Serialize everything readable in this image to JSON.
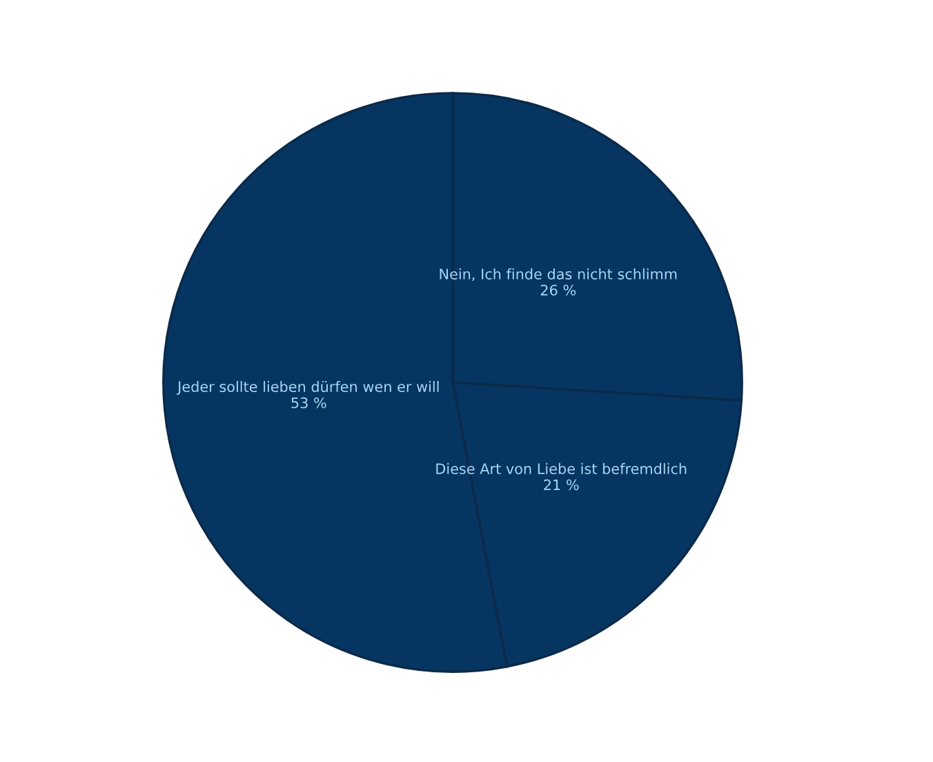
{
  "chart_data": {
    "type": "pie",
    "categories": [
      "Nein, Ich finde das nicht schlimm",
      "Diese Art von Liebe ist befremdlich",
      "Jeder sollte lieben dürfen wen er will"
    ],
    "values": [
      26,
      21,
      53
    ],
    "value_labels": [
      "26 %",
      "21 %",
      "53 %"
    ],
    "colors": [
      "#063562",
      "#063562",
      "#063562"
    ],
    "legend": false
  }
}
